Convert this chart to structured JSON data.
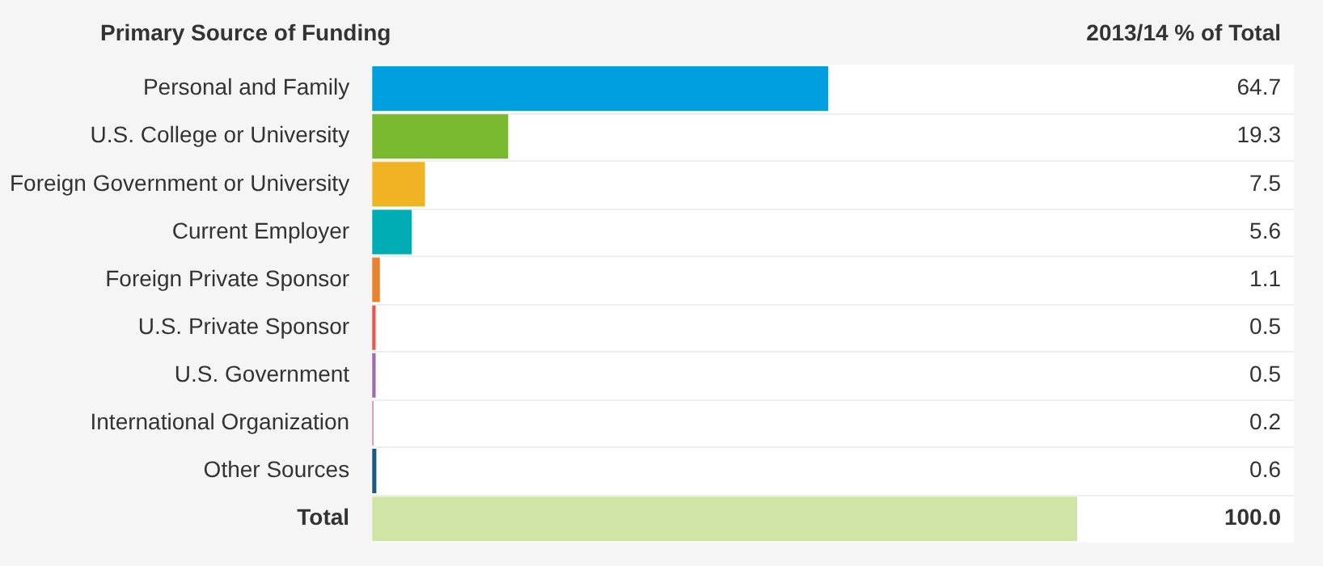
{
  "chart_data": {
    "type": "bar",
    "orientation": "horizontal",
    "ylabel": "Primary Source of Funding",
    "xlabel": "2013/14 % of Total",
    "categories": [
      "Personal and Family",
      "U.S. College or University",
      "Foreign Government or University",
      "Current Employer",
      "Foreign Private Sponsor",
      "U.S. Private Sponsor",
      "U.S. Government",
      "International Organization",
      "Other Sources",
      "Total"
    ],
    "values": [
      64.7,
      19.3,
      7.5,
      5.6,
      1.1,
      0.5,
      0.5,
      0.2,
      0.6,
      100.0
    ],
    "value_labels": [
      "64.7",
      "19.3",
      "7.5",
      "5.6",
      "1.1",
      "0.5",
      "0.5",
      "0.2",
      "0.6",
      "100.0"
    ],
    "colors": [
      "#009fdf",
      "#7ab82f",
      "#f0b323",
      "#00adb5",
      "#e8822c",
      "#e8574d",
      "#9b6bb5",
      "#d48ab8",
      "#1f5a7e",
      "#cfe5a6"
    ],
    "xlim": [
      0,
      100
    ],
    "tick_labels": "y",
    "legend": false
  }
}
